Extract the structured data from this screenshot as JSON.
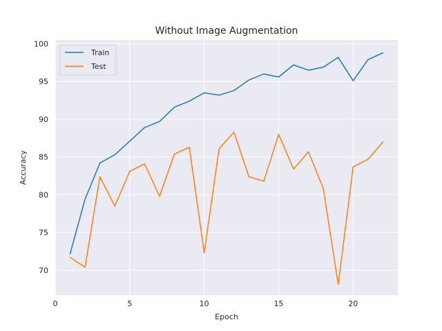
{
  "chart_data": {
    "type": "line",
    "title": "Without Image Augmentation",
    "xlabel": "Epoch",
    "ylabel": "Accuracy",
    "xlim": [
      0,
      23
    ],
    "ylim": [
      66.7,
      100.5
    ],
    "xticks": [
      0,
      5,
      10,
      15,
      20
    ],
    "yticks": [
      70,
      75,
      80,
      85,
      90,
      95,
      100
    ],
    "grid": true,
    "legend_position": "top-left",
    "x": [
      1,
      2,
      3,
      4,
      5,
      6,
      7,
      8,
      9,
      10,
      11,
      12,
      13,
      14,
      15,
      16,
      17,
      18,
      19,
      20,
      21,
      22
    ],
    "series": [
      {
        "name": "Train",
        "color": "#1f77b4",
        "values": [
          72.2,
          79.4,
          84.2,
          85.3,
          87.1,
          88.9,
          89.7,
          91.6,
          92.4,
          93.5,
          93.2,
          93.8,
          95.2,
          96.0,
          95.6,
          97.2,
          96.5,
          96.9,
          98.2,
          95.1,
          97.9,
          98.8
        ]
      },
      {
        "name": "Test",
        "color": "#ff7f0e",
        "values": [
          71.7,
          70.4,
          82.4,
          78.5,
          83.1,
          84.1,
          79.8,
          85.4,
          86.3,
          72.3,
          86.1,
          88.3,
          82.4,
          81.8,
          88.0,
          83.4,
          85.7,
          80.8,
          68.1,
          83.7,
          84.7,
          87.0
        ]
      }
    ]
  }
}
